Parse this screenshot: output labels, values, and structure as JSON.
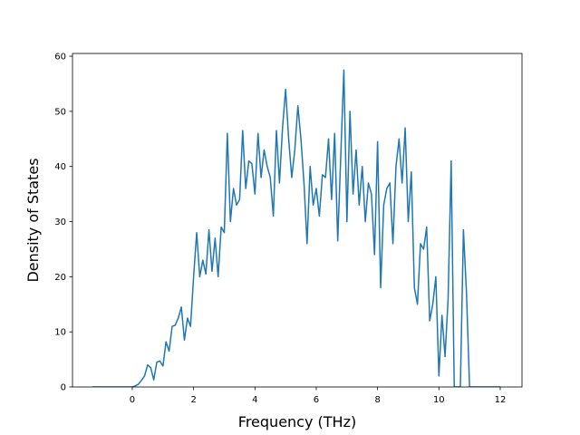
{
  "chart_data": {
    "type": "line",
    "xlabel": "Frequency (THz)",
    "ylabel": "Density of States",
    "xlim": [
      -1.95,
      12.71
    ],
    "ylim": [
      0,
      60.5
    ],
    "xticks": [
      0,
      2,
      4,
      6,
      8,
      10,
      12
    ],
    "yticks": [
      0,
      10,
      20,
      30,
      40,
      50,
      60
    ],
    "grid": false,
    "series": [
      {
        "color": "#1f77b4",
        "x": [
          -1.3,
          -1,
          -0.5,
          0,
          0.1,
          0.2,
          0.3,
          0.4,
          0.5,
          0.6,
          0.7,
          0.8,
          0.9,
          1.0,
          1.1,
          1.2,
          1.3,
          1.4,
          1.5,
          1.6,
          1.7,
          1.8,
          1.9,
          2.0,
          2.1,
          2.2,
          2.3,
          2.4,
          2.5,
          2.6,
          2.7,
          2.8,
          2.9,
          3.0,
          3.1,
          3.2,
          3.3,
          3.4,
          3.5,
          3.6,
          3.7,
          3.8,
          3.9,
          4.0,
          4.1,
          4.2,
          4.3,
          4.4,
          4.5,
          4.6,
          4.7,
          4.8,
          4.9,
          5.0,
          5.1,
          5.2,
          5.3,
          5.4,
          5.5,
          5.6,
          5.7,
          5.8,
          5.9,
          6.0,
          6.1,
          6.2,
          6.3,
          6.4,
          6.5,
          6.6,
          6.7,
          6.8,
          6.9,
          7.0,
          7.1,
          7.2,
          7.3,
          7.4,
          7.5,
          7.6,
          7.7,
          7.8,
          7.9,
          8.0,
          8.1,
          8.2,
          8.3,
          8.4,
          8.5,
          8.6,
          8.7,
          8.8,
          8.9,
          9.0,
          9.1,
          9.2,
          9.3,
          9.4,
          9.5,
          9.6,
          9.7,
          9.8,
          9.9,
          10.0,
          10.1,
          10.2,
          10.3,
          10.4,
          10.5,
          10.6,
          10.7,
          10.8,
          10.9,
          11.0,
          11.5,
          12.0
        ],
        "values": [
          0,
          0,
          0,
          0,
          0.2,
          0.5,
          1.2,
          2,
          4,
          3.5,
          1.3,
          4.5,
          4.7,
          3.8,
          8.2,
          6.5,
          11,
          11.2,
          12.5,
          14.5,
          8.5,
          12.5,
          11,
          20,
          28,
          20,
          23,
          20.5,
          28.5,
          21,
          27,
          20,
          29,
          28,
          46,
          30,
          36,
          33,
          34,
          46.5,
          36,
          41,
          40.5,
          35,
          46,
          38,
          43,
          40,
          38,
          31,
          46.5,
          37,
          47,
          54,
          45,
          38,
          43,
          51,
          45,
          37,
          26,
          40,
          33,
          36,
          31,
          38.5,
          38,
          45,
          34,
          46,
          26.5,
          42,
          57.5,
          30,
          50,
          35,
          43,
          33,
          40,
          30,
          37,
          35,
          24,
          44.5,
          18,
          33,
          36,
          37,
          26,
          40,
          45,
          37,
          47,
          30,
          39,
          18,
          15,
          26,
          25,
          29,
          12,
          15,
          20,
          2,
          13,
          5.5,
          16,
          41,
          0,
          0,
          0,
          28.5,
          17,
          0,
          0,
          0
        ]
      }
    ]
  }
}
